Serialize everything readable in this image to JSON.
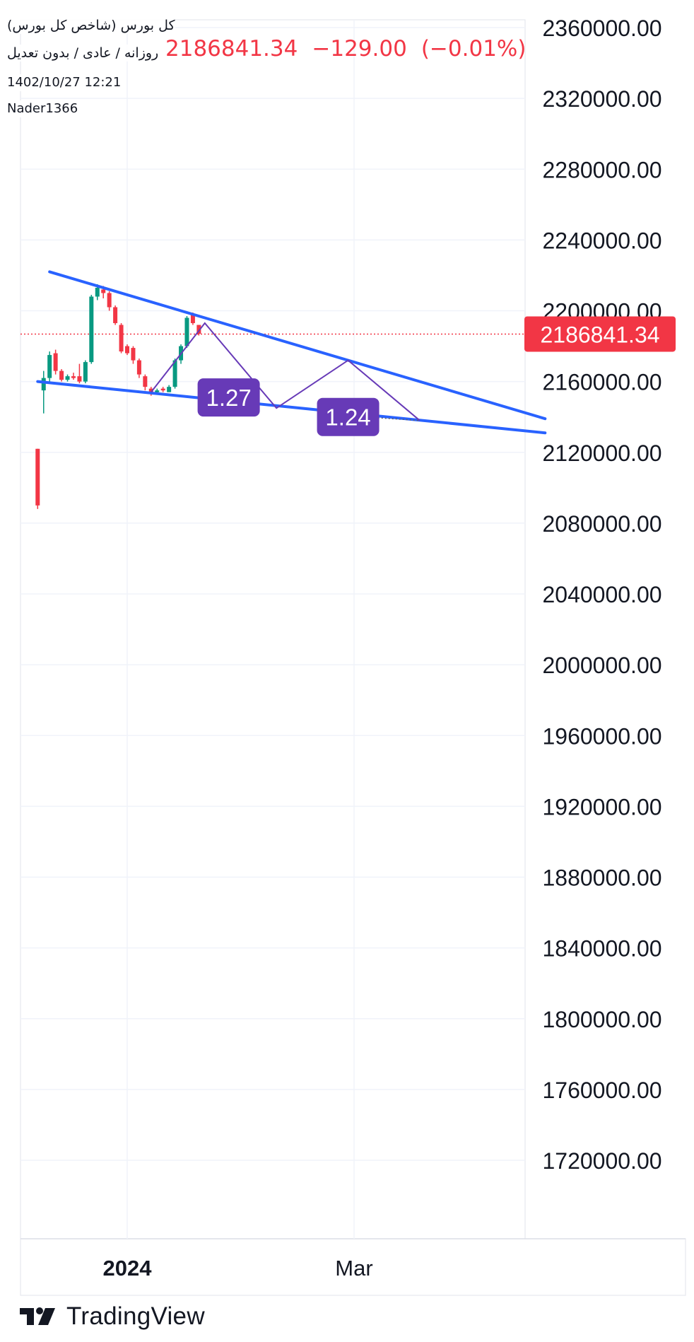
{
  "header": {
    "symbol_title": "کل بورس (شاخص کل بورس)",
    "chart_settings": "روزانه / عادی / بدون تعدیل",
    "datetime": "1402/10/27 12:21",
    "author": "Nader1366",
    "last_price": "2186841.34",
    "change": "−129.00",
    "change_percent": "(−0.01%)"
  },
  "price_label": {
    "value": "2186841.34",
    "color": "#f23645"
  },
  "pattern_labels": [
    "1.27",
    "1.24"
  ],
  "colors": {
    "up": "#089981",
    "down": "#f23645",
    "trendline": "#2962ff",
    "projection": "#673ab7",
    "label_bg": "#673ab7"
  },
  "branding": {
    "name": "TradingView",
    "icon": "tradingview-logo-icon"
  },
  "chart_data": {
    "type": "candlestick",
    "interval": "daily",
    "y_axis": {
      "ticks": [
        2360000,
        2320000,
        2280000,
        2240000,
        2200000,
        2160000,
        2120000,
        2080000,
        2040000,
        2000000,
        1960000,
        1920000,
        1880000,
        1840000,
        1800000,
        1760000,
        1720000
      ],
      "tick_labels": [
        "2360000.00",
        "2320000.00",
        "2280000.00",
        "2240000.00",
        "2200000.00",
        "2160000.00",
        "2120000.00",
        "2080000.00",
        "2040000.00",
        "2000000.00",
        "1960000.00",
        "1920000.00",
        "1880000.00",
        "1840000.00",
        "1800000.00",
        "1760000.00",
        "1720000.00"
      ],
      "range": [
        1690000,
        2362000
      ]
    },
    "x_axis": {
      "ticks": [
        "2024",
        "Mar"
      ],
      "range_days": [
        -15,
        70
      ],
      "tick_days": [
        0,
        38
      ]
    },
    "last_price_line": 2186841.34,
    "grid": true,
    "candles": [
      {
        "d": -15,
        "o": 2122000,
        "h": 2122000,
        "l": 2088000,
        "c": 2090000
      },
      {
        "d": -14,
        "o": 2155000,
        "h": 2166000,
        "l": 2142000,
        "c": 2162000
      },
      {
        "d": -13,
        "o": 2162000,
        "h": 2177000,
        "l": 2160000,
        "c": 2175000
      },
      {
        "d": -12,
        "o": 2176000,
        "h": 2178000,
        "l": 2164000,
        "c": 2166000
      },
      {
        "d": -11,
        "o": 2166000,
        "h": 2167000,
        "l": 2160000,
        "c": 2161000
      },
      {
        "d": -10,
        "o": 2161000,
        "h": 2164000,
        "l": 2160000,
        "c": 2163000
      },
      {
        "d": -9,
        "o": 2163000,
        "h": 2165000,
        "l": 2161000,
        "c": 2162000
      },
      {
        "d": -8,
        "o": 2163000,
        "h": 2170000,
        "l": 2159000,
        "c": 2160000
      },
      {
        "d": -7,
        "o": 2160000,
        "h": 2172000,
        "l": 2159000,
        "c": 2171000
      },
      {
        "d": -6,
        "o": 2171000,
        "h": 2209000,
        "l": 2170000,
        "c": 2208000
      },
      {
        "d": -5,
        "o": 2208000,
        "h": 2215000,
        "l": 2206000,
        "c": 2213000
      },
      {
        "d": -4,
        "o": 2212000,
        "h": 2214000,
        "l": 2207000,
        "c": 2210000
      },
      {
        "d": -3,
        "o": 2210000,
        "h": 2211000,
        "l": 2200000,
        "c": 2202000
      },
      {
        "d": -2,
        "o": 2202000,
        "h": 2203000,
        "l": 2192000,
        "c": 2193000
      },
      {
        "d": -1,
        "o": 2192000,
        "h": 2193000,
        "l": 2176000,
        "c": 2177000
      },
      {
        "d": 0,
        "o": 2180000,
        "h": 2181000,
        "l": 2175000,
        "c": 2176000
      },
      {
        "d": 1,
        "o": 2179000,
        "h": 2180000,
        "l": 2170000,
        "c": 2172000
      },
      {
        "d": 2,
        "o": 2172000,
        "h": 2173000,
        "l": 2162000,
        "c": 2164000
      },
      {
        "d": 3,
        "o": 2163000,
        "h": 2164000,
        "l": 2155000,
        "c": 2157000
      },
      {
        "d": 4,
        "o": 2156000,
        "h": 2157000,
        "l": 2152000,
        "c": 2154000
      },
      {
        "d": 5,
        "o": 2154000,
        "h": 2156000,
        "l": 2153000,
        "c": 2155000
      },
      {
        "d": 6,
        "o": 2156000,
        "h": 2157000,
        "l": 2154000,
        "c": 2155000
      },
      {
        "d": 7,
        "o": 2154000,
        "h": 2158000,
        "l": 2154000,
        "c": 2157000
      },
      {
        "d": 8,
        "o": 2157000,
        "h": 2173000,
        "l": 2156000,
        "c": 2172000
      },
      {
        "d": 9,
        "o": 2172000,
        "h": 2181000,
        "l": 2170000,
        "c": 2180000
      },
      {
        "d": 10,
        "o": 2180000,
        "h": 2197000,
        "l": 2179000,
        "c": 2196000
      },
      {
        "d": 11,
        "o": 2198000,
        "h": 2199000,
        "l": 2192000,
        "c": 2193000
      },
      {
        "d": 12,
        "o": 2192000,
        "h": 2192000,
        "l": 2186000,
        "c": 2187000
      }
    ],
    "trendlines": [
      {
        "points": [
          [
            -13,
            2222000
          ],
          [
            70,
            2139000
          ]
        ]
      },
      {
        "points": [
          [
            -15,
            2160000
          ],
          [
            70,
            2131000
          ]
        ]
      }
    ],
    "projection": {
      "points": [
        [
          4,
          2154000
        ],
        [
          13,
          2193000
        ],
        [
          25,
          2145000
        ],
        [
          37,
          2172000
        ],
        [
          49,
          2138000
        ]
      ],
      "dotted_end": [
        [
          42,
          2139500
        ],
        [
          49,
          2138000
        ]
      ]
    },
    "annotations": [
      {
        "text": "1.27",
        "d": 17,
        "v": 2151000
      },
      {
        "text": "1.24",
        "d": 37,
        "v": 2140000
      }
    ]
  }
}
